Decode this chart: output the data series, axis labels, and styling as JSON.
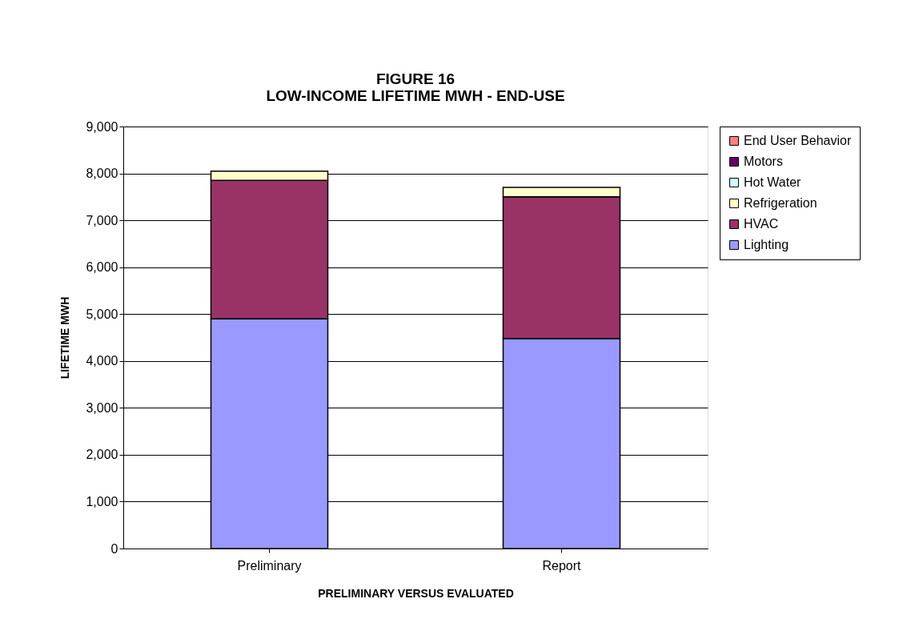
{
  "chart_data": {
    "type": "bar",
    "title": "FIGURE 16\nLOW-INCOME LIFETIME MWH - END-USE",
    "xlabel": "PRELIMINARY VERSUS EVALUATED",
    "ylabel": "LIFETIME MWH",
    "categories": [
      "Preliminary",
      "Report"
    ],
    "stacked": true,
    "series": [
      {
        "name": "Lighting",
        "color": "#9999ff",
        "values": [
          4900,
          4480
        ]
      },
      {
        "name": "HVAC",
        "color": "#993366",
        "values": [
          2950,
          3020
        ]
      },
      {
        "name": "Refrigeration",
        "color": "#ffffcc",
        "values": [
          200,
          200
        ]
      },
      {
        "name": "Hot Water",
        "color": "#ccffff",
        "values": [
          0,
          0
        ]
      },
      {
        "name": "Motors",
        "color": "#660066",
        "values": [
          0,
          0
        ]
      },
      {
        "name": "End User Behavior",
        "color": "#ff8080",
        "values": [
          0,
          0
        ]
      }
    ],
    "ylim": [
      0,
      9000
    ],
    "yticks": [
      0,
      {
        "value": 1000,
        "label": "1,000"
      },
      {
        "value": 2000,
        "label": "2,000"
      },
      {
        "value": 3000,
        "label": "3,000"
      },
      {
        "value": 4000,
        "label": "4,000"
      },
      {
        "value": 5000,
        "label": "5,000"
      },
      {
        "value": 6000,
        "label": "6,000"
      },
      {
        "value": 7000,
        "label": "7,000"
      },
      {
        "value": 8000,
        "label": "8,000"
      },
      {
        "value": 9000,
        "label": "9,000"
      }
    ],
    "grid": "y",
    "legend": "right"
  }
}
